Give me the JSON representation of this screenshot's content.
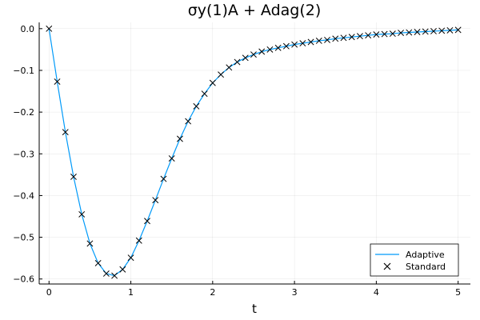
{
  "chart_data": {
    "type": "line",
    "title": "σy(1)A + Adag(2)",
    "xlabel": "t",
    "ylabel": "",
    "xlim": [
      -0.12,
      5.15
    ],
    "ylim": [
      -0.612,
      0.015
    ],
    "xticks": [
      0,
      1,
      2,
      3,
      4,
      5
    ],
    "xtick_labels": [
      "0",
      "1",
      "2",
      "3",
      "4",
      "5"
    ],
    "yticks": [
      0.0,
      -0.1,
      -0.2,
      -0.3,
      -0.4,
      -0.5,
      -0.6
    ],
    "ytick_labels": [
      "0.0",
      "−0.1",
      "−0.2",
      "−0.3",
      "−0.4",
      "−0.5",
      "−0.6"
    ],
    "grid": true,
    "legend_position": "bottom-right",
    "series": [
      {
        "name": "Adaptive",
        "style": "line",
        "color": "#009af9",
        "x": [
          0,
          0.1,
          0.2,
          0.3,
          0.4,
          0.5,
          0.6,
          0.7,
          0.8,
          0.9,
          1.0,
          1.1,
          1.2,
          1.3,
          1.4,
          1.5,
          1.6,
          1.7,
          1.8,
          1.9,
          2.0,
          2.1,
          2.2,
          2.3,
          2.4,
          2.5,
          2.6,
          2.7,
          2.8,
          2.9,
          3.0,
          3.1,
          3.2,
          3.3,
          3.4,
          3.5,
          3.6,
          3.7,
          3.8,
          3.9,
          4.0,
          4.1,
          4.2,
          4.3,
          4.4,
          4.5,
          4.6,
          4.7,
          4.8,
          4.9,
          5.0
        ],
        "y": [
          0.0,
          -0.127,
          -0.248,
          -0.355,
          -0.445,
          -0.515,
          -0.562,
          -0.587,
          -0.592,
          -0.577,
          -0.549,
          -0.508,
          -0.461,
          -0.411,
          -0.36,
          -0.311,
          -0.264,
          -0.222,
          -0.186,
          -0.156,
          -0.13,
          -0.11,
          -0.093,
          -0.08,
          -0.07,
          -0.062,
          -0.055,
          -0.05,
          -0.046,
          -0.042,
          -0.038,
          -0.035,
          -0.032,
          -0.029,
          -0.027,
          -0.024,
          -0.022,
          -0.02,
          -0.018,
          -0.016,
          -0.014,
          -0.013,
          -0.012,
          -0.01,
          -0.009,
          -0.008,
          -0.007,
          -0.006,
          -0.005,
          -0.004,
          -0.003
        ]
      },
      {
        "name": "Standard",
        "style": "marker",
        "marker": "x",
        "color": "#000000",
        "x": [
          0,
          0.1,
          0.2,
          0.3,
          0.4,
          0.5,
          0.6,
          0.7,
          0.8,
          0.9,
          1.0,
          1.1,
          1.2,
          1.3,
          1.4,
          1.5,
          1.6,
          1.7,
          1.8,
          1.9,
          2.0,
          2.1,
          2.2,
          2.3,
          2.4,
          2.5,
          2.6,
          2.7,
          2.8,
          2.9,
          3.0,
          3.1,
          3.2,
          3.3,
          3.4,
          3.5,
          3.6,
          3.7,
          3.8,
          3.9,
          4.0,
          4.1,
          4.2,
          4.3,
          4.4,
          4.5,
          4.6,
          4.7,
          4.8,
          4.9,
          5.0
        ],
        "y": [
          0.0,
          -0.127,
          -0.248,
          -0.355,
          -0.445,
          -0.515,
          -0.562,
          -0.587,
          -0.592,
          -0.577,
          -0.549,
          -0.508,
          -0.461,
          -0.411,
          -0.36,
          -0.311,
          -0.264,
          -0.222,
          -0.186,
          -0.156,
          -0.13,
          -0.11,
          -0.093,
          -0.08,
          -0.07,
          -0.062,
          -0.055,
          -0.05,
          -0.046,
          -0.042,
          -0.038,
          -0.035,
          -0.032,
          -0.029,
          -0.027,
          -0.024,
          -0.022,
          -0.02,
          -0.018,
          -0.016,
          -0.014,
          -0.013,
          -0.012,
          -0.01,
          -0.009,
          -0.008,
          -0.007,
          -0.006,
          -0.005,
          -0.004,
          -0.003
        ]
      }
    ]
  }
}
